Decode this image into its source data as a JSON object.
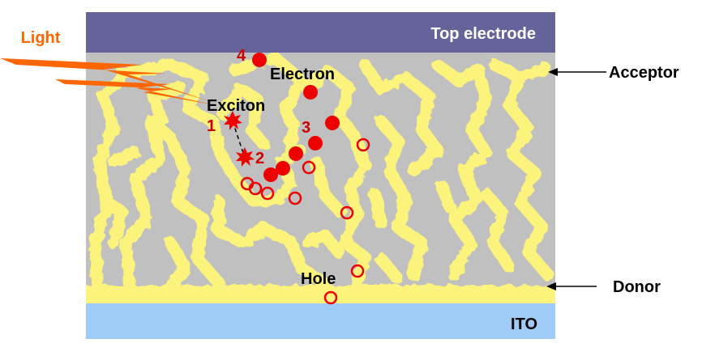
{
  "labels": {
    "top_electrode": "Top electrode",
    "ito": "ITO",
    "light": "Light",
    "acceptor": "Acceptor",
    "donor": "Donor",
    "electron": "Electron",
    "exciton": "Exciton",
    "hole": "Hole",
    "step_1": "1",
    "step_2": "2",
    "step_3": "3",
    "step_4": "4"
  },
  "colors": {
    "top_electrode": "#65649a",
    "ito": "#9ecbf7",
    "acceptor": "#c0c0c0",
    "donor": "#fbf37b",
    "light": "#ff6600",
    "charge": "#ee0000",
    "step_number": "#cc0000"
  }
}
